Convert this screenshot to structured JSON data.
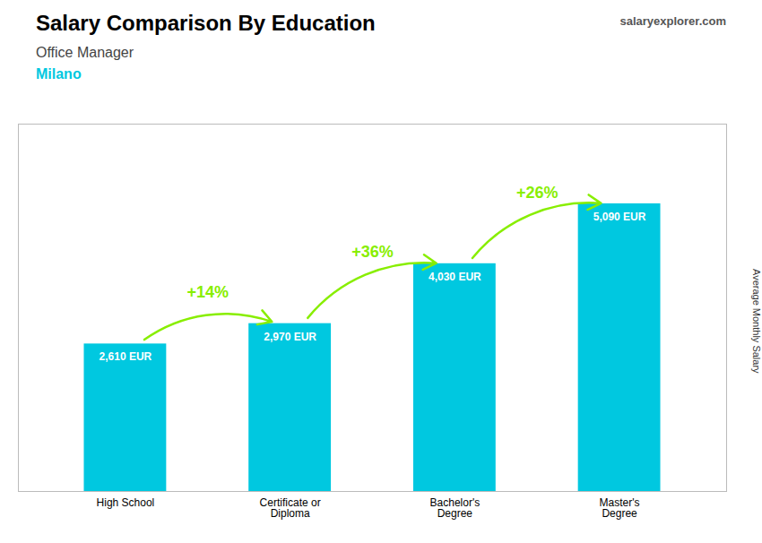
{
  "chart_data": {
    "type": "bar",
    "title": "Salary Comparison By Education",
    "subtitle": "Office Manager",
    "annotations": [
      {
        "text": "Milano"
      },
      {
        "text": "salaryexplorer.com"
      },
      {
        "text": "+14%",
        "from": "High School",
        "to": "Certificate or\nDiploma",
        "color": "#88ee00"
      },
      {
        "text": "+36%",
        "from": "Certificate or\nDiploma",
        "to": "Bachelor's\nDegree",
        "color": "#88ee00"
      },
      {
        "text": "+26%",
        "from": "Bachelor's\nDegree",
        "to": "Master's\nDegree",
        "color": "#88ee00"
      }
    ],
    "ylabel": "Average Monthly Salary",
    "categories": [
      "High School",
      "Certificate or\nDiploma",
      "Bachelor's\nDegree",
      "Master's\nDegree"
    ],
    "values": [
      2610,
      2970,
      4030,
      5090
    ],
    "value_labels": [
      "2,610 EUR",
      "2,970 EUR",
      "4,030 EUR",
      "5,090 EUR"
    ],
    "data_labels": true,
    "color": "#00c8e0",
    "ylim": [
      0,
      6500
    ],
    "yticks": [],
    "tick_labels": "x",
    "grid": false
  }
}
